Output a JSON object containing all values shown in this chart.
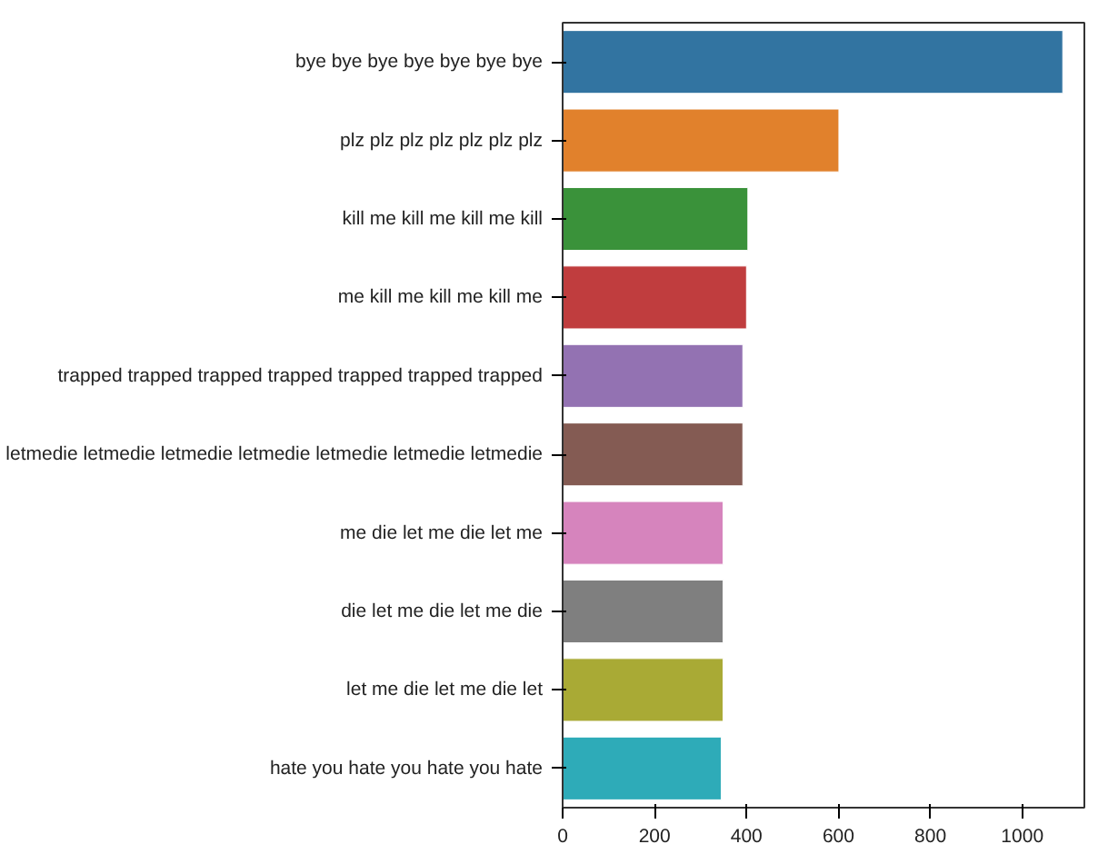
{
  "chart_data": {
    "type": "bar",
    "orientation": "horizontal",
    "categories": [
      "bye bye bye bye bye bye bye",
      "plz plz plz plz plz plz plz",
      "kill me kill me kill me kill",
      "me kill me kill me kill me",
      "trapped trapped trapped trapped trapped trapped trapped",
      "letmedie letmedie letmedie letmedie letmedie letmedie letmedie",
      "me die let me die let me",
      "die let me die let me die",
      "let me die let me die let",
      "hate you hate you hate you hate"
    ],
    "values": [
      1088,
      601,
      403,
      400,
      392,
      392,
      349,
      349,
      349,
      345
    ],
    "colors": [
      "#3274a1",
      "#e1812c",
      "#3a923a",
      "#c03d3e",
      "#9372b2",
      "#845b53",
      "#d684bd",
      "#7f7f7f",
      "#a9aa35",
      "#2eabb8"
    ],
    "xlim": [
      0,
      1135
    ],
    "xticks": [
      0,
      200,
      400,
      600,
      800,
      1000
    ],
    "grid": false
  }
}
